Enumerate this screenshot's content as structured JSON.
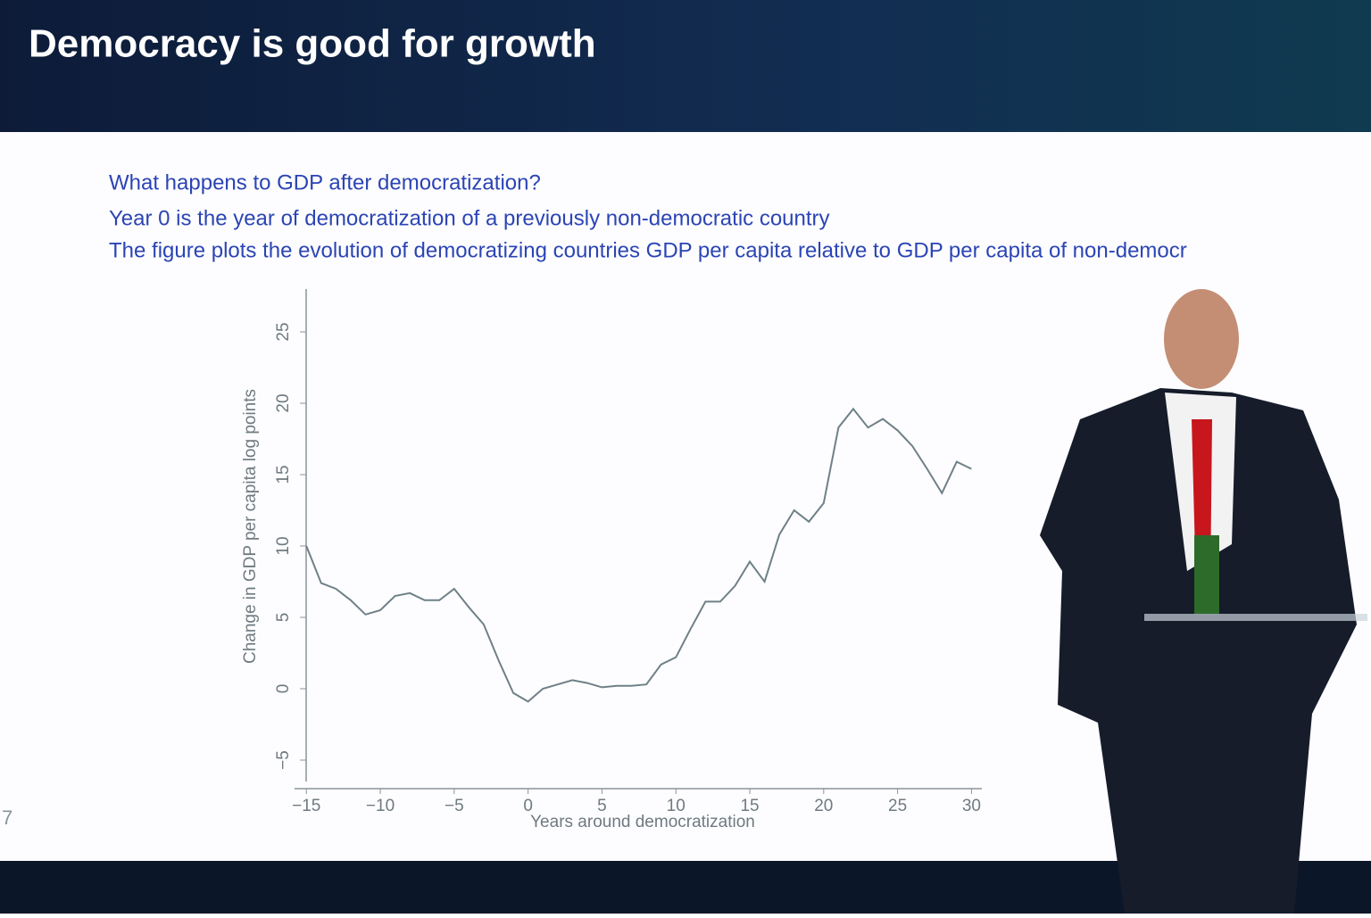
{
  "chart_data": {
    "type": "line",
    "title": "Democracy is good for growth",
    "annotations": [
      "What happens to GDP after democratization?",
      "Year 0 is the year of democratization of a previously non-democratic country",
      "The figure plots the evolution of democratizing countries GDP per capita relative to GDP per capita of non-democr"
    ],
    "page_number": "7",
    "x_label": "Years around democratization",
    "y_label": "Change in GDP per capita log points",
    "x": [
      -15,
      -14,
      -13,
      -12,
      -11,
      -10,
      -9,
      -8,
      -7,
      -6,
      -5,
      -4,
      -3,
      -2,
      -1,
      0,
      1,
      2,
      3,
      4,
      5,
      6,
      7,
      8,
      9,
      10,
      11,
      12,
      13,
      14,
      15,
      16,
      17,
      18,
      19,
      20,
      21,
      22,
      23,
      24,
      25,
      26,
      27,
      28,
      29,
      30
    ],
    "series": [
      {
        "color": "#6f8088",
        "values": [
          10,
          7.4,
          7.0,
          6.2,
          5.2,
          5.5,
          6.5,
          6.7,
          6.2,
          6.2,
          7.0,
          5.7,
          4.5,
          2.0,
          -0.3,
          -0.9,
          0.0,
          0.3,
          0.6,
          0.4,
          0.1,
          0.2,
          0.2,
          0.3,
          1.7,
          2.2,
          4.2,
          6.1,
          6.1,
          7.2,
          8.9,
          7.5,
          10.8,
          12.5,
          11.7,
          13.0,
          18.3,
          19.6,
          18.3,
          18.9,
          18.1,
          17.0,
          15.4,
          13.7,
          15.9,
          15.4
        ]
      }
    ],
    "xlim": [
      -15.8,
      30.7
    ],
    "ylim": [
      -6.5,
      28
    ],
    "xticks": [
      {
        "value": -15,
        "label": "−15"
      },
      {
        "value": -10,
        "label": "−10"
      },
      {
        "value": -5,
        "label": "−5"
      },
      0,
      5,
      10,
      15,
      20,
      25,
      30
    ],
    "yticks": [
      {
        "value": -5,
        "label": "−5"
      },
      0,
      5,
      10,
      15,
      20,
      25
    ],
    "grid": false
  }
}
